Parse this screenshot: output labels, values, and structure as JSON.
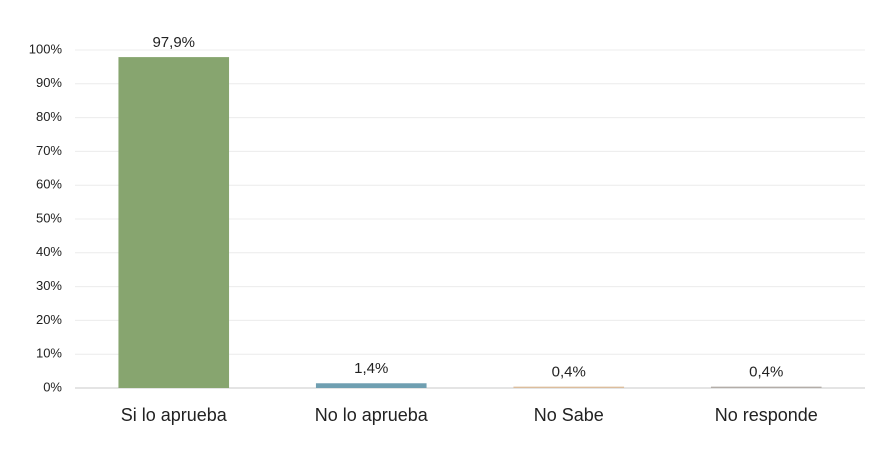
{
  "chart_data": {
    "type": "bar",
    "categories": [
      "Si lo aprueba",
      "No lo aprueba",
      "No Sabe",
      "No responde"
    ],
    "values": [
      97.9,
      1.4,
      0.4,
      0.4
    ],
    "value_labels": [
      "97,9%",
      "1,4%",
      "0,4%",
      "0,4%"
    ],
    "colors": [
      "#87a56f",
      "#6f9fb1",
      "#dcbd9c",
      "#b3ada8"
    ],
    "ylim": [
      0,
      100
    ],
    "yticks": [
      {
        "value": 0,
        "label": "0%"
      },
      {
        "value": 10,
        "label": "10%"
      },
      {
        "value": 20,
        "label": "20%"
      },
      {
        "value": 30,
        "label": "30%"
      },
      {
        "value": 40,
        "label": "40%"
      },
      {
        "value": 50,
        "label": "50%"
      },
      {
        "value": 60,
        "label": "60%"
      },
      {
        "value": 70,
        "label": "70%"
      },
      {
        "value": 80,
        "label": "80%"
      },
      {
        "value": 90,
        "label": "90%"
      },
      {
        "value": 100,
        "label": "100%"
      }
    ],
    "grid": true
  }
}
